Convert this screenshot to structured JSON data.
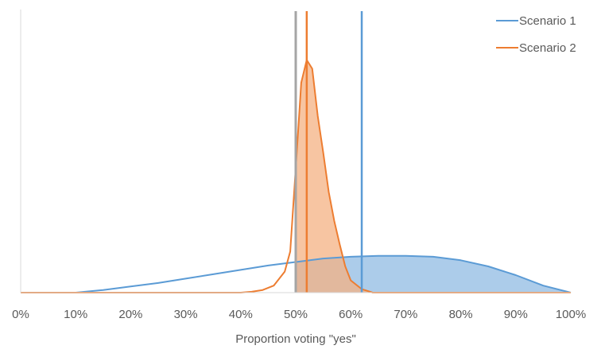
{
  "chart_data": {
    "type": "area",
    "title": "",
    "xlabel": "Proportion voting \"yes\"",
    "ylabel": "",
    "xlim": [
      0,
      100
    ],
    "x_ticks": [
      "0%",
      "10%",
      "20%",
      "30%",
      "40%",
      "50%",
      "60%",
      "70%",
      "80%",
      "90%",
      "100%"
    ],
    "grid": false,
    "legend_position": "top-right",
    "series": [
      {
        "name": "Scenario 1",
        "color": "#5b9bd5",
        "fill_color": "#9dc3e6",
        "shaded_from_x": 50,
        "x": [
          0,
          5,
          10,
          15,
          20,
          25,
          30,
          35,
          40,
          45,
          50,
          55,
          60,
          65,
          70,
          75,
          80,
          85,
          90,
          95,
          100
        ],
        "y": [
          0.0,
          0.0,
          0.0,
          0.03,
          0.07,
          0.11,
          0.16,
          0.21,
          0.26,
          0.31,
          0.35,
          0.39,
          0.41,
          0.42,
          0.42,
          0.41,
          0.37,
          0.3,
          0.2,
          0.08,
          0.0
        ],
        "vertical_marker_x": 62
      },
      {
        "name": "Scenario 2",
        "color": "#ed7d31",
        "fill_color": "#f4b183",
        "shaded_from_x": 50,
        "x": [
          0,
          40,
          42,
          44,
          46,
          48,
          49,
          50,
          51,
          52,
          53,
          54,
          55,
          56,
          57,
          58,
          59,
          60,
          62,
          64,
          100
        ],
        "y": [
          0.0,
          0.0,
          0.01,
          0.03,
          0.08,
          0.24,
          0.47,
          1.42,
          2.4,
          2.66,
          2.56,
          2.02,
          1.6,
          1.15,
          0.82,
          0.55,
          0.3,
          0.14,
          0.04,
          0.0,
          0.0
        ],
        "vertical_marker_x": 52
      }
    ],
    "reference_line": {
      "x": 50,
      "color": "#a5a5a5"
    }
  }
}
